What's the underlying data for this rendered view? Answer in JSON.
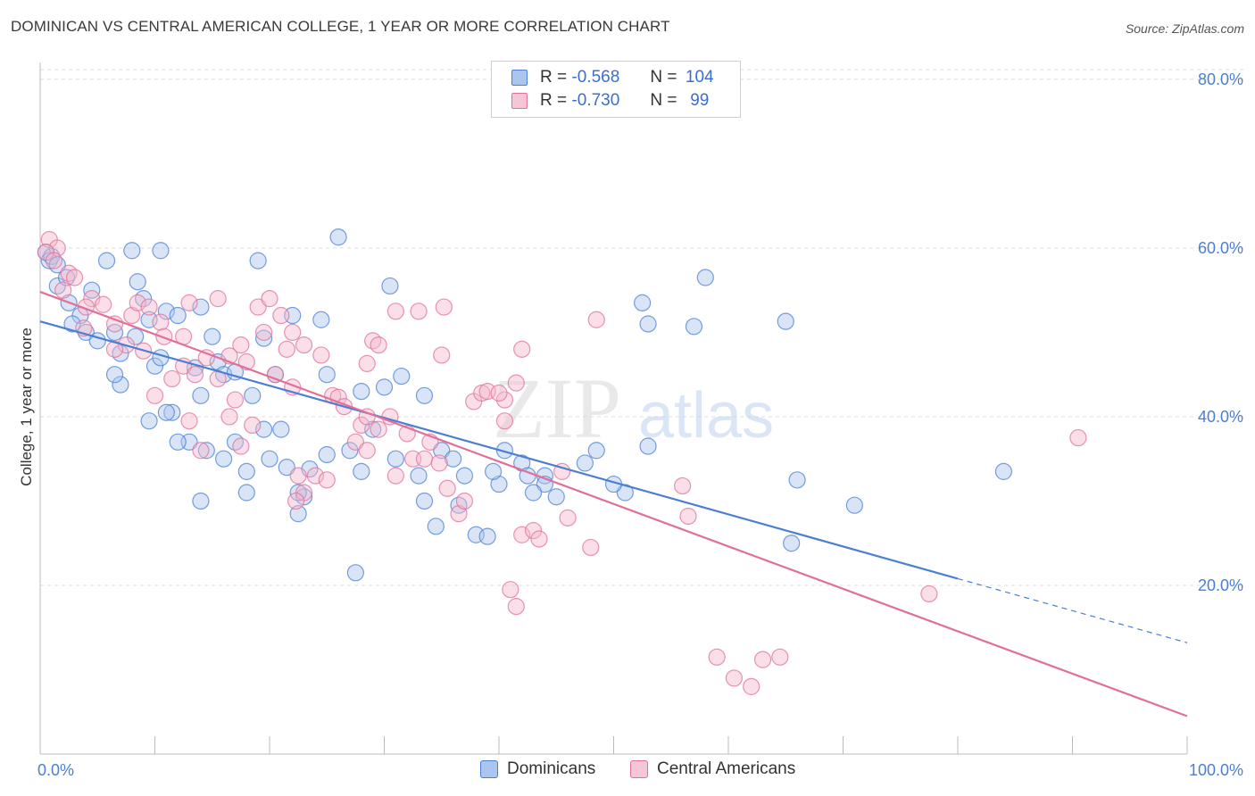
{
  "title": "DOMINICAN VS CENTRAL AMERICAN COLLEGE, 1 YEAR OR MORE CORRELATION CHART",
  "source": "Source: ZipAtlas.com",
  "watermark": {
    "zip": "ZIP",
    "atlas": "atlas"
  },
  "legend": {
    "r_label": "R =",
    "n_label": "N =",
    "dominicans": {
      "r": "-0.568",
      "n": "104"
    },
    "central_americans": {
      "r": "-0.730",
      "n": "99"
    }
  },
  "bottom_legend": {
    "dominicans": "Dominicans",
    "central_americans": "Central Americans"
  },
  "colors": {
    "blue": "#4a7fd4",
    "blue_fill": "#aac6ee",
    "pink": "#e0709a",
    "pink_fill": "#f5b8cc",
    "grid": "#dcdcdc"
  },
  "chart_data": {
    "type": "scatter",
    "xlabel": "",
    "ylabel": "College, 1 year or more",
    "x_tick_labels": [
      "0.0%",
      "100.0%"
    ],
    "y_tick_labels": [
      "20.0%",
      "40.0%",
      "60.0%",
      "80.0%"
    ],
    "y_ticks": [
      20,
      40,
      60,
      80
    ],
    "xlim": [
      0,
      100
    ],
    "ylim": [
      0,
      82
    ],
    "grid": true,
    "series": [
      {
        "name": "Dominicans",
        "color": "#4a7fd4",
        "trend": {
          "x0": 0,
          "y0": 51.3,
          "x1": 80,
          "y1": 20.8,
          "dash_to_x": 100,
          "dash_to_y": 13.2
        },
        "points": [
          [
            0.5,
            59.5
          ],
          [
            0.8,
            58.5
          ],
          [
            1,
            59
          ],
          [
            1.5,
            58
          ],
          [
            5.8,
            58.5
          ],
          [
            8,
            59.7
          ],
          [
            10.5,
            59.7
          ],
          [
            19,
            58.5
          ],
          [
            26,
            61.3
          ],
          [
            1.5,
            55.5
          ],
          [
            2.3,
            56.5
          ],
          [
            4.5,
            55
          ],
          [
            2.5,
            53.5
          ],
          [
            3.5,
            52
          ],
          [
            2.8,
            51
          ],
          [
            4,
            50
          ],
          [
            6.5,
            50
          ],
          [
            5,
            49
          ],
          [
            7,
            47.5
          ],
          [
            8.3,
            49.5
          ],
          [
            8.5,
            56
          ],
          [
            11,
            52.5
          ],
          [
            9,
            54
          ],
          [
            9.5,
            51.5
          ],
          [
            12,
            52
          ],
          [
            14,
            53
          ],
          [
            15,
            49.5
          ],
          [
            13.5,
            45.8
          ],
          [
            10,
            46
          ],
          [
            10.5,
            47
          ],
          [
            15.5,
            46.5
          ],
          [
            16,
            45
          ],
          [
            17,
            45.3
          ],
          [
            19.5,
            49.3
          ],
          [
            20.5,
            45
          ],
          [
            22,
            52
          ],
          [
            24.5,
            51.5
          ],
          [
            25,
            45
          ],
          [
            28,
            43
          ],
          [
            30,
            43.5
          ],
          [
            31.5,
            44.8
          ],
          [
            30.5,
            55.5
          ],
          [
            33,
            33
          ],
          [
            35,
            36
          ],
          [
            36,
            35
          ],
          [
            37,
            33
          ],
          [
            36.5,
            29.5
          ],
          [
            38,
            26
          ],
          [
            39,
            25.8
          ],
          [
            34.5,
            27
          ],
          [
            33.5,
            30
          ],
          [
            28,
            33.5
          ],
          [
            29,
            38.5
          ],
          [
            27,
            36
          ],
          [
            25,
            35.5
          ],
          [
            23.5,
            33.8
          ],
          [
            23,
            30.5
          ],
          [
            22.5,
            31
          ],
          [
            21.5,
            34
          ],
          [
            20,
            35
          ],
          [
            18,
            33.5
          ],
          [
            19.5,
            38.5
          ],
          [
            21,
            38.5
          ],
          [
            17,
            37
          ],
          [
            16,
            35
          ],
          [
            14.5,
            36
          ],
          [
            13,
            37
          ],
          [
            12,
            37
          ],
          [
            11.5,
            40.5
          ],
          [
            11,
            40.5
          ],
          [
            14,
            42.5
          ],
          [
            9.5,
            39.5
          ],
          [
            7,
            43.8
          ],
          [
            6.5,
            45
          ],
          [
            18.5,
            42.5
          ],
          [
            18,
            31
          ],
          [
            14,
            30
          ],
          [
            22.5,
            28.5
          ],
          [
            27.5,
            21.5
          ],
          [
            44,
            33
          ],
          [
            42,
            34.5
          ],
          [
            40,
            32
          ],
          [
            39.5,
            33.5
          ],
          [
            42.5,
            33
          ],
          [
            40.5,
            36
          ],
          [
            44,
            32
          ],
          [
            45,
            30.5
          ],
          [
            47.5,
            34.5
          ],
          [
            48.5,
            36
          ],
          [
            53,
            36.5
          ],
          [
            57,
            50.7
          ],
          [
            58,
            56.5
          ],
          [
            53,
            51
          ],
          [
            52.5,
            53.5
          ],
          [
            51,
            31
          ],
          [
            50,
            32
          ],
          [
            43,
            31
          ],
          [
            65.5,
            25
          ],
          [
            66,
            32.5
          ],
          [
            65,
            51.3
          ],
          [
            71,
            29.5
          ],
          [
            84,
            33.5
          ],
          [
            33.5,
            42.5
          ],
          [
            31,
            35
          ]
        ]
      },
      {
        "name": "Central Americans",
        "color": "#e0709a",
        "trend": {
          "x0": 0,
          "y0": 54.8,
          "x1": 100,
          "y1": 4.5
        },
        "points": [
          [
            0.8,
            61
          ],
          [
            1.5,
            60
          ],
          [
            0.5,
            59.5
          ],
          [
            1.2,
            58.5
          ],
          [
            2.5,
            57
          ],
          [
            3,
            56.5
          ],
          [
            2,
            55
          ],
          [
            4.5,
            54
          ],
          [
            4,
            53
          ],
          [
            5.5,
            53.3
          ],
          [
            3.8,
            50.5
          ],
          [
            6.5,
            51
          ],
          [
            8,
            52
          ],
          [
            8.5,
            53.5
          ],
          [
            9.5,
            53
          ],
          [
            10.5,
            51.2
          ],
          [
            10.8,
            49.5
          ],
          [
            12.5,
            49.5
          ],
          [
            13,
            53.5
          ],
          [
            15.5,
            54
          ],
          [
            17.5,
            48.5
          ],
          [
            16.5,
            47.2
          ],
          [
            19,
            53
          ],
          [
            20,
            54
          ],
          [
            21,
            52
          ],
          [
            22,
            50
          ],
          [
            23,
            48.5
          ],
          [
            24.5,
            47.3
          ],
          [
            19.5,
            50
          ],
          [
            21.5,
            48
          ],
          [
            18,
            46.5
          ],
          [
            14.5,
            47
          ],
          [
            12.5,
            46
          ],
          [
            13.5,
            45
          ],
          [
            15.5,
            44.5
          ],
          [
            11.5,
            44.5
          ],
          [
            9,
            47.8
          ],
          [
            7.5,
            48.5
          ],
          [
            6.5,
            48
          ],
          [
            10,
            42.5
          ],
          [
            16.5,
            40
          ],
          [
            20.5,
            45
          ],
          [
            22,
            43.5
          ],
          [
            25.5,
            42.5
          ],
          [
            26,
            42.3
          ],
          [
            26.5,
            41.2
          ],
          [
            28,
            39
          ],
          [
            28.5,
            40
          ],
          [
            29.5,
            38.5
          ],
          [
            30.5,
            40
          ],
          [
            32,
            38
          ],
          [
            28.5,
            46.3
          ],
          [
            29,
            49
          ],
          [
            29.5,
            48.5
          ],
          [
            31,
            52.5
          ],
          [
            33,
            52.5
          ],
          [
            35,
            47.3
          ],
          [
            35.2,
            53
          ],
          [
            13,
            39.5
          ],
          [
            14,
            36
          ],
          [
            17.5,
            36.5
          ],
          [
            18.5,
            39
          ],
          [
            17,
            42
          ],
          [
            22.5,
            33
          ],
          [
            24,
            33
          ],
          [
            23,
            31
          ],
          [
            22.3,
            30
          ],
          [
            25,
            32.5
          ],
          [
            27.5,
            37
          ],
          [
            28.5,
            36
          ],
          [
            31,
            33
          ],
          [
            32.5,
            35
          ],
          [
            33.5,
            35
          ],
          [
            34.8,
            34.5
          ],
          [
            34,
            37
          ],
          [
            35.5,
            31.5
          ],
          [
            36.5,
            28.5
          ],
          [
            37,
            30
          ],
          [
            37.8,
            41.8
          ],
          [
            38.5,
            42.8
          ],
          [
            39,
            43
          ],
          [
            40.5,
            42
          ],
          [
            40,
            42.8
          ],
          [
            41.5,
            44
          ],
          [
            42,
            48
          ],
          [
            40.5,
            39.5
          ],
          [
            42,
            26
          ],
          [
            41,
            19.5
          ],
          [
            41.5,
            17.5
          ],
          [
            43,
            26.5
          ],
          [
            43.5,
            25.5
          ],
          [
            45.5,
            33.5
          ],
          [
            46,
            28
          ],
          [
            48,
            24.5
          ],
          [
            48.5,
            51.5
          ],
          [
            56,
            31.8
          ],
          [
            56.5,
            28.2
          ],
          [
            59,
            11.5
          ],
          [
            60.5,
            9
          ],
          [
            62,
            8
          ],
          [
            63,
            11.2
          ],
          [
            64.5,
            11.5
          ],
          [
            77.5,
            19
          ],
          [
            90.5,
            37.5
          ]
        ]
      }
    ]
  }
}
